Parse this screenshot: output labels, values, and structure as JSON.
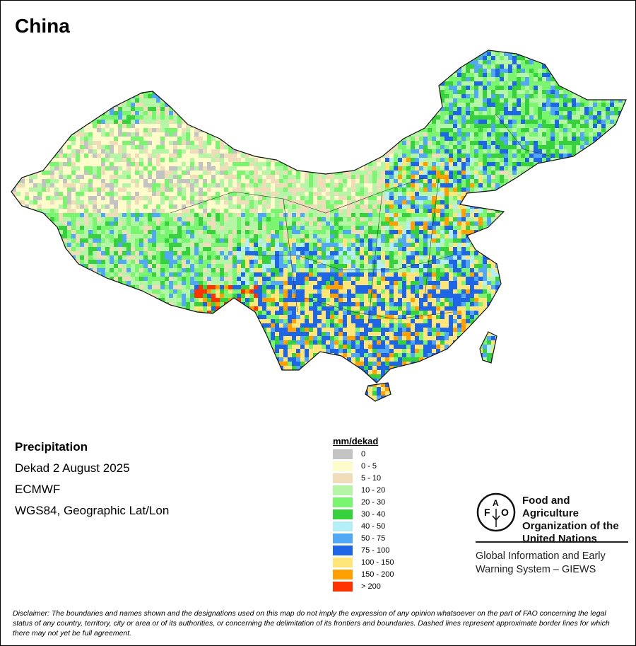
{
  "title": "China",
  "info": {
    "variable": "Precipitation",
    "period": "Dekad 2 August 2025",
    "source": "ECMWF",
    "projection": "WGS84, Geographic Lat/Lon"
  },
  "legend": {
    "title": "mm/dekad",
    "items": [
      {
        "label": "0",
        "color": "#c3c3c3"
      },
      {
        "label": "0 - 5",
        "color": "#fffccc"
      },
      {
        "label": "5 - 10",
        "color": "#f0dcb8"
      },
      {
        "label": "10 - 20",
        "color": "#b5f5a6"
      },
      {
        "label": "20 - 30",
        "color": "#7af570"
      },
      {
        "label": "30 - 40",
        "color": "#36d13d"
      },
      {
        "label": "40 - 50",
        "color": "#b5eef7"
      },
      {
        "label": "50 - 75",
        "color": "#52a8f5"
      },
      {
        "label": "75 - 100",
        "color": "#1f66e6"
      },
      {
        "label": "100 - 150",
        "color": "#ffe57a"
      },
      {
        "label": "150 - 200",
        "color": "#ffa000"
      },
      {
        "label": "> 200",
        "color": "#ff3300"
      }
    ]
  },
  "org": {
    "logo_text": "FAO FIAT PANIS",
    "name_lines": [
      "Food and Agriculture",
      "Organization of the",
      "United Nations"
    ],
    "program_lines": [
      "Global Information and Early",
      "Warning System – GIEWS"
    ]
  },
  "disclaimer": "Disclaimer: The boundaries and names shown and the designations used on this map do not imply the expression of any opinion whatsoever on the part of FAO concerning the legal status of any country, territory, city or area or of its authorities, or concerning the delimitation of its frontiers and boundaries. Dashed lines represent approximate border lines for which there may not yet be full agreement."
}
